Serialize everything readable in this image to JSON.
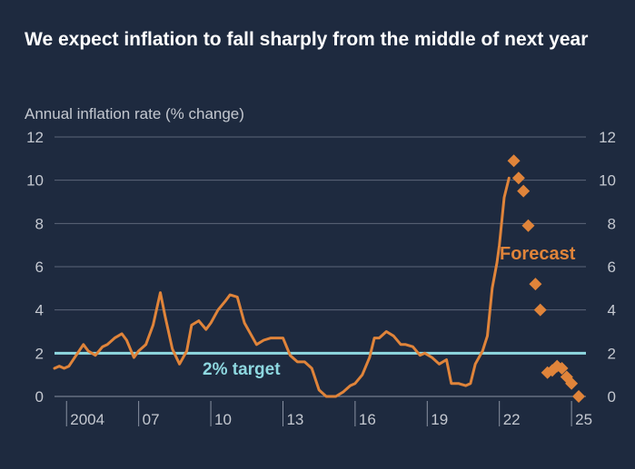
{
  "title": "We expect inflation to fall sharply from the middle of next year",
  "colors": {
    "background": "#1e2a3f",
    "line": "#e0843a",
    "target": "#8ed8e0",
    "grid": "#5c6679",
    "axis_text": "#c4c8d0"
  },
  "chart_data": {
    "type": "line",
    "title": "We expect inflation to fall sharply from the middle of next year",
    "ylabel": "Annual inflation rate (% change)",
    "xlabel": "",
    "ylim": [
      0,
      12
    ],
    "xlim": [
      2003.5,
      2025.6
    ],
    "y_ticks": [
      "0",
      "2",
      "4",
      "6",
      "8",
      "10",
      "12"
    ],
    "x_ticks": [
      {
        "x": 2004,
        "label": "2004"
      },
      {
        "x": 2007,
        "label": "07"
      },
      {
        "x": 2010,
        "label": "10"
      },
      {
        "x": 2013,
        "label": "13"
      },
      {
        "x": 2016,
        "label": "16"
      },
      {
        "x": 2019,
        "label": "19"
      },
      {
        "x": 2022,
        "label": "22"
      },
      {
        "x": 2025,
        "label": "25"
      }
    ],
    "grid": true,
    "target": {
      "value": 2,
      "label": "2% target"
    },
    "series": [
      {
        "type": "line",
        "x": [
          2003.5,
          2003.7,
          2003.9,
          2004.1,
          2004.4,
          2004.7,
          2004.9,
          2005.2,
          2005.5,
          2005.7,
          2006.0,
          2006.3,
          2006.5,
          2006.8,
          2007.0,
          2007.3,
          2007.6,
          2007.9,
          2008.1,
          2008.4,
          2008.7,
          2009.0,
          2009.2,
          2009.5,
          2009.8,
          2010.0,
          2010.3,
          2010.6,
          2010.8,
          2011.1,
          2011.4,
          2011.7,
          2011.9,
          2012.2,
          2012.5,
          2012.8,
          2013.0,
          2013.3,
          2013.6,
          2013.9,
          2014.2,
          2014.5,
          2014.8,
          2015.0,
          2015.2,
          2015.5,
          2015.8,
          2016.0,
          2016.3,
          2016.6,
          2016.8,
          2017.0,
          2017.3,
          2017.6,
          2017.9,
          2018.1,
          2018.4,
          2018.7,
          2018.9,
          2019.2,
          2019.5,
          2019.8,
          2020.0,
          2020.3,
          2020.6,
          2020.8,
          2021.0,
          2021.3,
          2021.5,
          2021.7,
          2021.9,
          2022.0,
          2022.2,
          2022.4
        ],
        "values": [
          1.3,
          1.4,
          1.3,
          1.4,
          1.9,
          2.4,
          2.1,
          1.9,
          2.3,
          2.4,
          2.7,
          2.9,
          2.6,
          1.8,
          2.1,
          2.4,
          3.3,
          4.8,
          3.7,
          2.2,
          1.5,
          2.1,
          3.3,
          3.5,
          3.1,
          3.4,
          4.0,
          4.4,
          4.7,
          4.6,
          3.4,
          2.8,
          2.4,
          2.6,
          2.7,
          2.7,
          2.7,
          1.9,
          1.6,
          1.6,
          1.3,
          0.3,
          0.0,
          0.0,
          0.0,
          0.2,
          0.5,
          0.6,
          1.0,
          1.8,
          2.7,
          2.7,
          3.0,
          2.8,
          2.4,
          2.4,
          2.3,
          1.9,
          2.0,
          1.8,
          1.5,
          1.7,
          0.6,
          0.6,
          0.5,
          0.6,
          1.5,
          2.1,
          2.8,
          5.0,
          6.2,
          7.0,
          9.2,
          10.1
        ]
      },
      {
        "name": "Forecast",
        "type": "scatter",
        "x": [
          2022.6,
          2022.8,
          2023.0,
          2023.2,
          2023.5,
          2023.7,
          2024.0,
          2024.2,
          2024.4,
          2024.6,
          2024.8,
          2025.0,
          2025.3
        ],
        "values": [
          10.9,
          10.1,
          9.5,
          7.9,
          5.2,
          4.0,
          1.1,
          1.2,
          1.4,
          1.3,
          0.9,
          0.6,
          0.0
        ]
      }
    ]
  }
}
